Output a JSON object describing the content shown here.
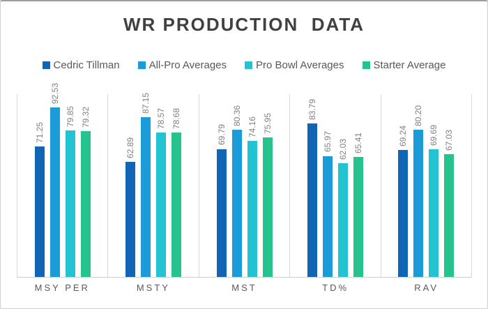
{
  "window": {
    "background": "#ffffff",
    "border_color": "#cfcfcf",
    "border_top_color": "#9e9e9e"
  },
  "chart_data": {
    "type": "bar",
    "title": "WR PRODUCTION  DATA",
    "title_color": "#404040",
    "categories": [
      "MSY PER",
      "MSTY",
      "MST",
      "TD%",
      "RAV"
    ],
    "series": [
      {
        "name": "Cedric Tillman",
        "color": "#1065b5",
        "values": [
          71.25,
          62.89,
          69.79,
          83.79,
          69.24
        ]
      },
      {
        "name": "All-Pro Averages",
        "color": "#1b9cd8",
        "values": [
          92.53,
          87.15,
          80.36,
          65.97,
          80.2
        ]
      },
      {
        "name": "Pro Bowl Averages",
        "color": "#24c3d2",
        "values": [
          79.85,
          78.57,
          74.16,
          62.03,
          69.69
        ]
      },
      {
        "name": "Starter Average",
        "color": "#26c38f",
        "values": [
          79.32,
          78.68,
          75.95,
          65.41,
          67.03
        ]
      }
    ],
    "ylim": [
      0,
      100
    ],
    "y_axis_labels_visible": false,
    "grid": "vertical-category-separators",
    "grid_color": "#d9d9d9",
    "axis_line_color": "#cfcfcf",
    "legend_position": "top",
    "legend_text_color": "#595959",
    "data_labels": {
      "visible": true,
      "rotation_degrees": 90,
      "decimals": 2,
      "color": "#7f7f7f"
    },
    "category_label_color": "#595959"
  }
}
